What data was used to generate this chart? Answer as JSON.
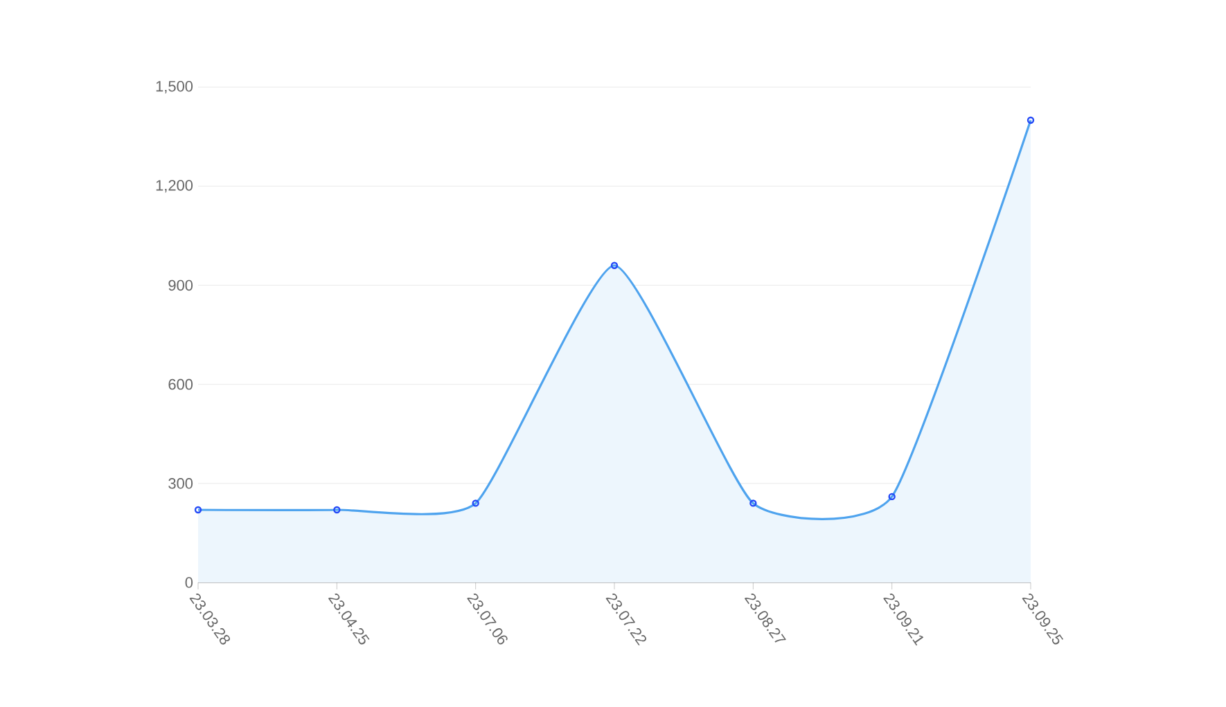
{
  "chart_data": {
    "type": "area",
    "categories": [
      "23.03.28",
      "23.04.25",
      "23.07.06",
      "23.07.22",
      "23.08.27",
      "23.09.21",
      "23.09.25"
    ],
    "series": [
      {
        "color": "#4ea3ee",
        "values": [
          220,
          220,
          240,
          960,
          240,
          260,
          1400
        ]
      }
    ],
    "ylim": [
      0,
      1500
    ],
    "yticks": [
      0,
      300,
      600,
      900,
      {
        "value": 1200,
        "label": "1,200"
      },
      {
        "value": 1500,
        "label": "1,500"
      }
    ],
    "grid": "y",
    "marker": "circle",
    "line_style": "solid"
  }
}
